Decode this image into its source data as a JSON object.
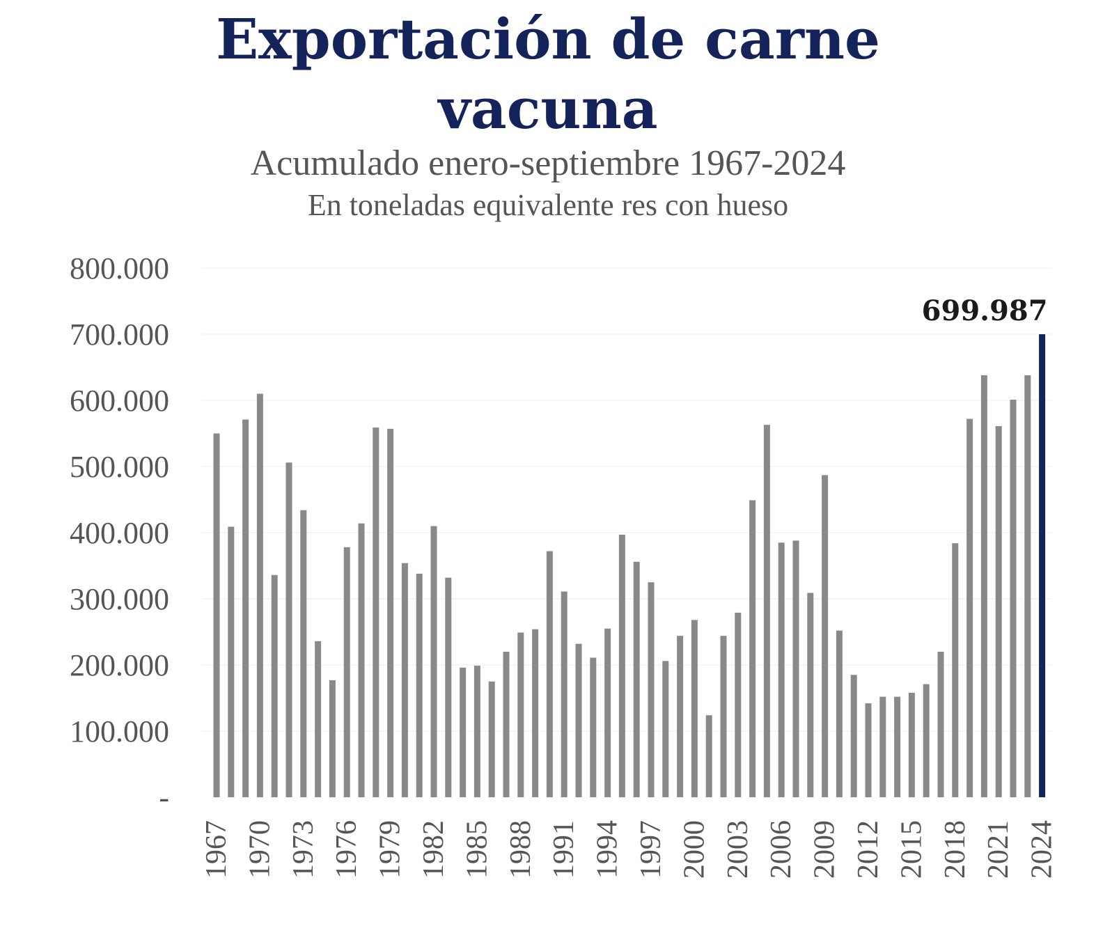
{
  "chart_data": {
    "type": "bar",
    "title_line1": "Exportación de carne",
    "title_line2": "vacuna",
    "subtitle": "Acumulado enero-septiembre 1967-2024",
    "unit_label": "En toneladas equivalente res con hueso",
    "xlabel": "",
    "ylabel": "",
    "ylim": [
      0,
      800000
    ],
    "y_ticks": [
      0,
      100000,
      200000,
      300000,
      400000,
      500000,
      600000,
      700000,
      800000
    ],
    "y_tick_labels": [
      "-",
      "100.000",
      "200.000",
      "300.000",
      "400.000",
      "500.000",
      "600.000",
      "700.000",
      "800.000"
    ],
    "grid": true,
    "categories": [
      "1967",
      "1968",
      "1969",
      "1970",
      "1971",
      "1972",
      "1973",
      "1974",
      "1975",
      "1976",
      "1977",
      "1978",
      "1979",
      "1980",
      "1981",
      "1982",
      "1983",
      "1984",
      "1985",
      "1986",
      "1987",
      "1988",
      "1989",
      "1990",
      "1991",
      "1992",
      "1993",
      "1994",
      "1995",
      "1996",
      "1997",
      "1998",
      "1999",
      "2000",
      "2001",
      "2002",
      "2003",
      "2004",
      "2005",
      "2006",
      "2007",
      "2008",
      "2009",
      "2010",
      "2011",
      "2012",
      "2013",
      "2014",
      "2015",
      "2016",
      "2017",
      "2018",
      "2019",
      "2020",
      "2021",
      "2022",
      "2023",
      "2024"
    ],
    "x_tick_labels": [
      "1967",
      "1970",
      "1973",
      "1976",
      "1979",
      "1982",
      "1985",
      "1988",
      "1991",
      "1994",
      "1997",
      "2000",
      "2003",
      "2006",
      "2009",
      "2012",
      "2015",
      "2018",
      "2021",
      "2024"
    ],
    "values": [
      550000,
      409000,
      571000,
      610000,
      336000,
      506000,
      434000,
      236000,
      177000,
      378000,
      414000,
      559000,
      557000,
      354000,
      338000,
      410000,
      332000,
      196000,
      199000,
      175000,
      220000,
      249000,
      254000,
      372000,
      311000,
      232000,
      211000,
      255000,
      397000,
      356000,
      325000,
      206000,
      244000,
      268000,
      124000,
      244000,
      279000,
      449000,
      563000,
      385000,
      388000,
      309000,
      487000,
      252000,
      185000,
      142000,
      152000,
      152000,
      158000,
      171000,
      220000,
      384000,
      572000,
      638000,
      561000,
      601000,
      638000,
      699987
    ],
    "highlight_index": 57,
    "highlight_label": "699.987",
    "bar_color": "#898989",
    "highlight_color": "#14245a",
    "grid_color": "#ececec",
    "tick_label_color": "#555555",
    "annotation_color": "#1a1a1a"
  }
}
